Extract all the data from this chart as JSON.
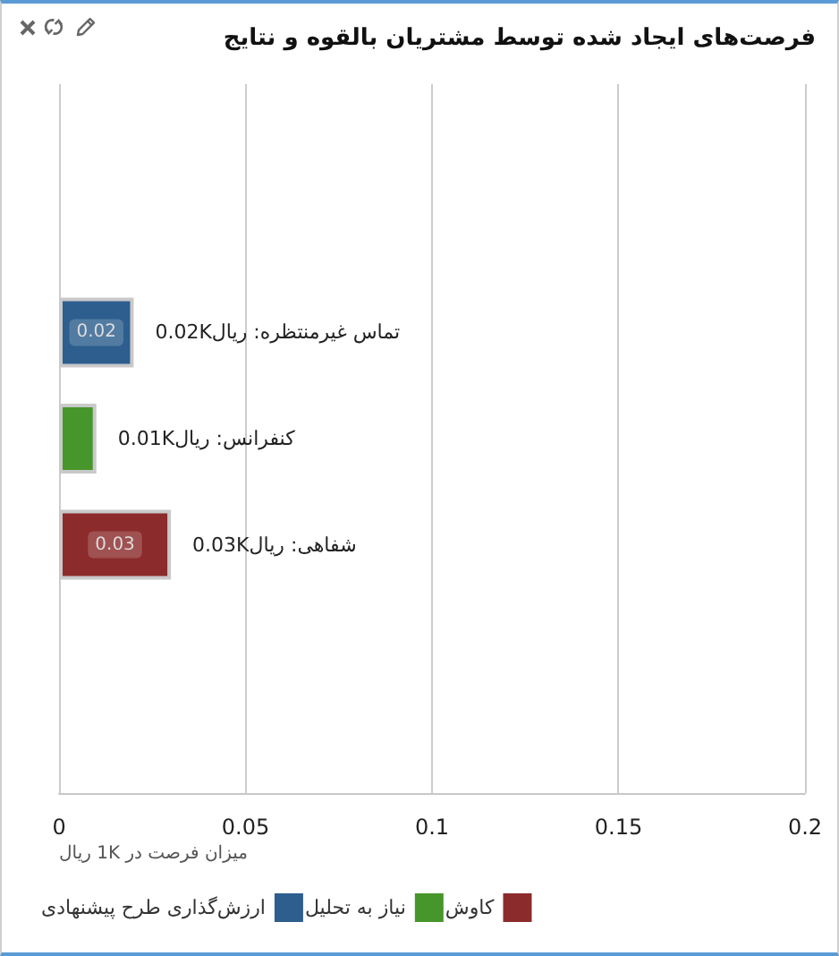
{
  "chart_data": {
    "type": "bar",
    "orientation": "horizontal",
    "title": "فرصت‌های ایجاد شده توسط مشتریان بالقوه و نتایج",
    "xlabel": "میزان فرصت در 1K ریال",
    "categories": [
      null
    ],
    "series": [
      {
        "name": "ارزش‌گذاری طرح پیشنهادی",
        "color": "#2d5e8e",
        "values": [
          0.02
        ],
        "value_labels": [
          "0.02"
        ]
      },
      {
        "name": "نیاز به تحلیل",
        "color": "#47962b",
        "values": [
          0.01
        ],
        "value_labels": [
          null
        ]
      },
      {
        "name": "کاوش",
        "color": "#8c2b2b",
        "values": [
          0.03
        ],
        "value_labels": [
          "0.03"
        ]
      }
    ],
    "annotations": [
      {
        "text": "تماس غیرمنتظره: ریال0.02K",
        "x": 0.02
      },
      {
        "text": "کنفرانس: ریال0.01K",
        "x": 0.01
      },
      {
        "text": "شفاهی: ریال0.03K",
        "x": 0.03
      }
    ],
    "xlim": [
      0,
      0.2
    ],
    "xticks": [
      0,
      0.05,
      0.1,
      0.15,
      0.2
    ],
    "grid": "x",
    "legend": "bottom left"
  }
}
